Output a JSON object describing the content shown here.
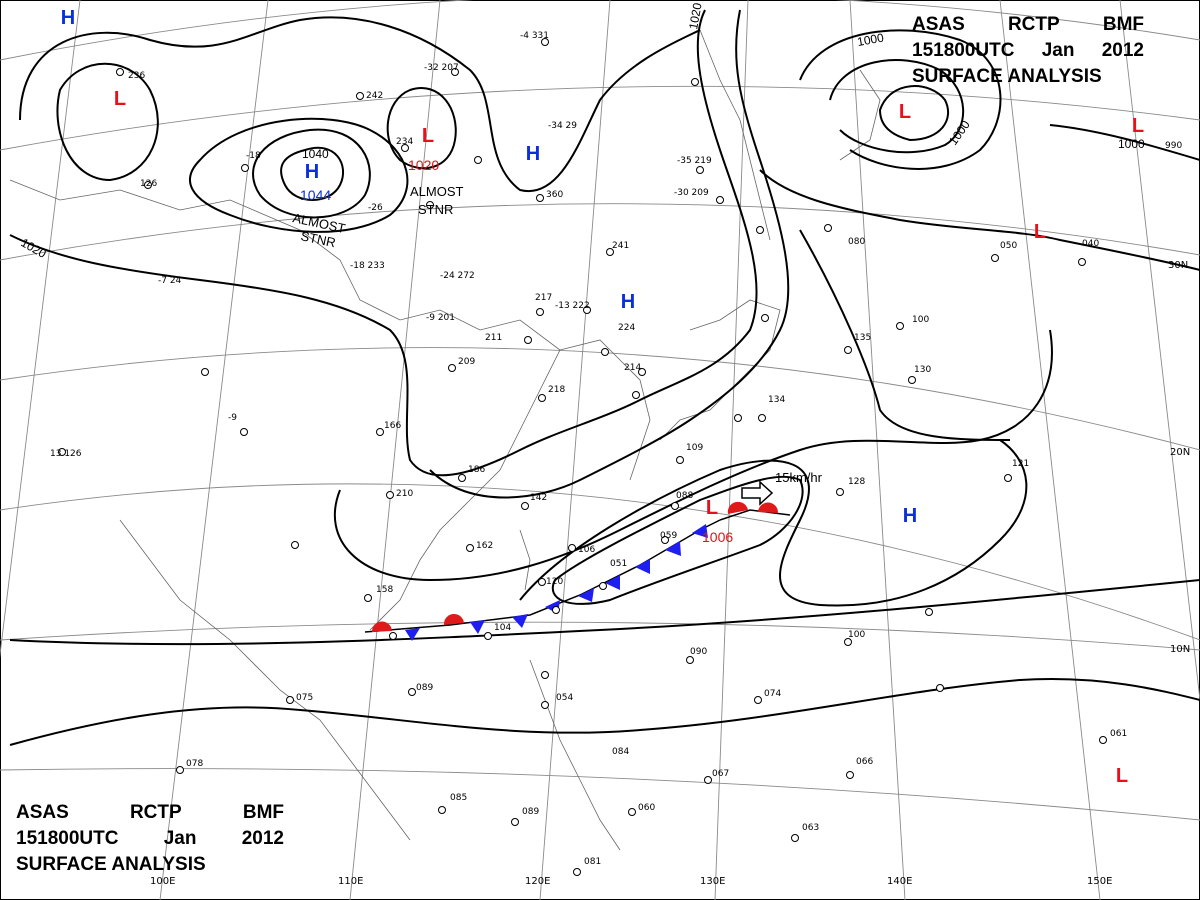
{
  "title": {
    "line1": [
      "ASAS",
      "RCTP",
      "BMF"
    ],
    "line2": [
      "151800UTC",
      "Jan",
      "2012"
    ],
    "line3": "SURFACE ANALYSIS"
  },
  "colors": {
    "high": "#0a2ee0",
    "low": "#e8101a",
    "cold_front": "#1e1ef0",
    "warm_front": "#e01a1a",
    "isobar": "#000000",
    "grid": "#808080"
  },
  "highs": [
    {
      "id": "h1",
      "label": "H"
    },
    {
      "id": "h2",
      "label": "H"
    },
    {
      "id": "h3",
      "label": "H"
    },
    {
      "id": "h4",
      "label": "H"
    },
    {
      "id": "h5",
      "label": "H"
    }
  ],
  "lows": [
    {
      "id": "l1",
      "label": "L"
    },
    {
      "id": "l2",
      "label": "L"
    },
    {
      "id": "l3",
      "label": "L"
    },
    {
      "id": "l4",
      "label": "L"
    },
    {
      "id": "l5",
      "label": "L"
    },
    {
      "id": "l6",
      "label": "L"
    },
    {
      "id": "l7",
      "label": "L"
    }
  ],
  "pressure_values": {
    "high_center": "1044",
    "low_north": "1020",
    "low_front": "1006"
  },
  "isobar_labels": [
    "1040",
    "1020",
    "1020",
    "1000",
    "1000",
    "1000"
  ],
  "annotations": {
    "almost_stnr": "ALMOST\nSTNR",
    "motion": "15km/hr"
  },
  "lat_labels": [
    "30N",
    "20N",
    "10N"
  ],
  "lon_labels": [
    "100E",
    "110E",
    "120E",
    "130E",
    "140E",
    "150E"
  ],
  "stations": [
    "-4 331",
    "236",
    "242",
    "-32 207",
    "234",
    "-26",
    "-18 233",
    "-24 272",
    "-9 201",
    "217",
    "-13 222",
    "211",
    "209",
    "218",
    "166",
    "186",
    "210",
    "142",
    "162",
    "158",
    "104",
    "089",
    "075",
    "078",
    "085",
    "089",
    "081",
    "054",
    "084",
    "060",
    "067",
    "063",
    "066",
    "061",
    "074",
    "090",
    "100",
    "128",
    "121",
    "135",
    "130",
    "100",
    "080",
    "050",
    "040",
    "990",
    "241",
    "224",
    "214",
    "134",
    "109",
    "088",
    "059",
    "051",
    "106",
    "120",
    "126",
    "-35 219",
    "-30 209",
    "-34 29",
    "360",
    "-18",
    "-7 24",
    "13 126",
    "-9"
  ]
}
